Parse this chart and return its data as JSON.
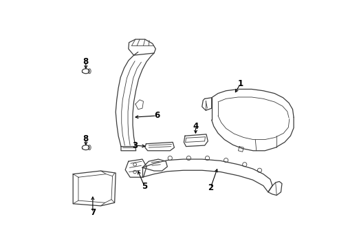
{
  "bg_color": "#ffffff",
  "line_color": "#3a3a3a",
  "label_fontsize": 8.5,
  "fig_width": 4.9,
  "fig_height": 3.6,
  "dpi": 100
}
